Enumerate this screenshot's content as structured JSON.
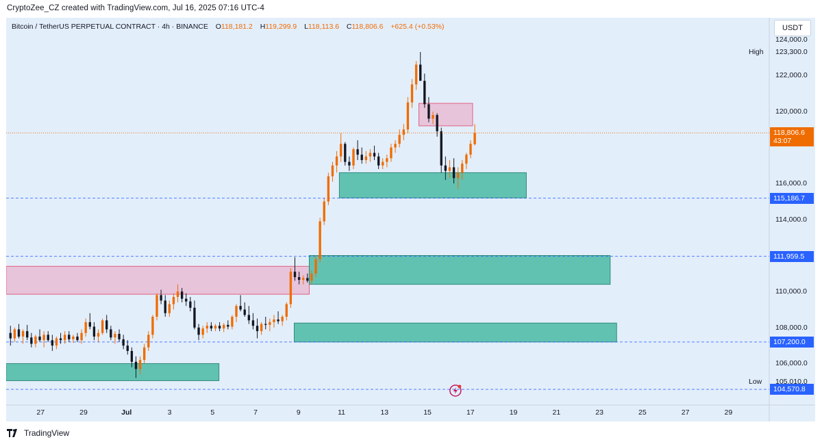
{
  "credit": "CryptoZee_CZ created with TradingView.com, Jul 16, 2025 07:16 UTC-4",
  "legend": {
    "symbol": "Bitcoin / TetherUS PERPETUAL CONTRACT · 4h · BINANCE",
    "o_label": "O",
    "o_value": "118,181.2",
    "h_label": "H",
    "h_value": "119,299.9",
    "l_label": "L",
    "l_value": "118,113.6",
    "c_label": "C",
    "c_value": "118,806.6",
    "change": "+625.4 (+0.53%)"
  },
  "currency": "USDT",
  "footer": {
    "brand": "TradingView",
    "logo_icon": "tradingview-logo-icon"
  },
  "colors": {
    "up": "#ef6c00",
    "down": "#131722",
    "demand_zone": "#5bbfae",
    "supply_zone": "#e8bcd4",
    "supply_border": "#e0607e",
    "current_price": "#ef6c00",
    "level_tag": "#2962ff",
    "background": "#e3eefb"
  },
  "chart_data": {
    "type": "candlestick",
    "timeframe": "4h",
    "ylim": [
      103700,
      125200
    ],
    "y_ticks": [
      "124,000.0",
      "122,000.0",
      "120,000.0",
      "116,000.0",
      "114,000.0",
      "110,000.0",
      "108,000.0",
      "106,000.0"
    ],
    "y_tick_values": [
      124000,
      122000,
      120000,
      116000,
      114000,
      110000,
      108000,
      106000
    ],
    "x_tick_labels": [
      "27",
      "29",
      "Jul",
      "3",
      "5",
      "7",
      "9",
      "11",
      "13",
      "15",
      "17",
      "19",
      "21",
      "23",
      "25",
      "27",
      "29"
    ],
    "x_tick_days": [
      -4,
      -2,
      0,
      2,
      4,
      6,
      8,
      10,
      12,
      14,
      16,
      18,
      20,
      22,
      24,
      26,
      28
    ],
    "x_range_days": [
      -5.6,
      29.9
    ],
    "current_price": {
      "label": "118,806.6",
      "value": 118806.6,
      "countdown": "43:07"
    },
    "high": {
      "label": "High",
      "value_label": "123,300.0",
      "value": 123300
    },
    "low": {
      "label": "Low",
      "value_label": "105,010.0",
      "value": 105010
    },
    "price_levels": [
      {
        "label": "115,186.7",
        "value": 115186.7
      },
      {
        "label": "111,959.5",
        "value": 111959.5
      },
      {
        "label": "107,200.0",
        "value": 107200
      },
      {
        "label": "104,570.8",
        "value": 104570.8
      }
    ],
    "zones": [
      {
        "kind": "supply",
        "x1": -5.6,
        "x2": 8.5,
        "y1": 109850,
        "y2": 111400
      },
      {
        "kind": "supply",
        "x1": 13.6,
        "x2": 16.1,
        "y1": 119200,
        "y2": 120450
      },
      {
        "kind": "demand",
        "x1": -5.6,
        "x2": 4.3,
        "y1": 105050,
        "y2": 106000
      },
      {
        "kind": "demand",
        "x1": 8.5,
        "x2": 22.5,
        "y1": 110400,
        "y2": 112000
      },
      {
        "kind": "demand",
        "x1": 7.8,
        "x2": 22.8,
        "y1": 107200,
        "y2": 108250
      },
      {
        "kind": "demand",
        "x1": 9.9,
        "x2": 18.6,
        "y1": 115200,
        "y2": 116600
      }
    ],
    "candles": [
      [
        107700,
        108100,
        107000,
        107400
      ],
      [
        107400,
        108000,
        107200,
        107900
      ],
      [
        107900,
        108200,
        107400,
        107500
      ],
      [
        107500,
        107900,
        107100,
        107800
      ],
      [
        107800,
        108150,
        107300,
        107450
      ],
      [
        107450,
        107700,
        106900,
        107100
      ],
      [
        107100,
        107600,
        106900,
        107500
      ],
      [
        107500,
        107900,
        107200,
        107300
      ],
      [
        107300,
        107800,
        106900,
        107600
      ],
      [
        107600,
        107800,
        107200,
        107300
      ],
      [
        107300,
        107600,
        106700,
        107000
      ],
      [
        107000,
        107500,
        106800,
        107400
      ],
      [
        107400,
        107700,
        107100,
        107300
      ],
      [
        107300,
        107800,
        107100,
        107600
      ],
      [
        107600,
        107800,
        107200,
        107350
      ],
      [
        107350,
        107600,
        107150,
        107500
      ],
      [
        107500,
        107700,
        107200,
        107300
      ],
      [
        107300,
        107900,
        107100,
        107700
      ],
      [
        107700,
        108500,
        107500,
        108300
      ],
      [
        108300,
        108800,
        107900,
        108050
      ],
      [
        108050,
        108300,
        107300,
        107500
      ],
      [
        107500,
        107900,
        107200,
        107700
      ],
      [
        107700,
        108500,
        107600,
        108400
      ],
      [
        108400,
        108700,
        107700,
        107900
      ],
      [
        107900,
        108100,
        107300,
        107450
      ],
      [
        107450,
        107800,
        107100,
        107650
      ],
      [
        107650,
        107900,
        107200,
        107350
      ],
      [
        107350,
        107600,
        106800,
        107000
      ],
      [
        107000,
        107300,
        106500,
        106700
      ],
      [
        106700,
        106900,
        105800,
        106100
      ],
      [
        106100,
        106400,
        105200,
        105700
      ],
      [
        105700,
        106400,
        105400,
        106200
      ],
      [
        106200,
        107100,
        106000,
        106900
      ],
      [
        106900,
        107800,
        106700,
        107600
      ],
      [
        107600,
        108700,
        107400,
        108600
      ],
      [
        108600,
        109900,
        108400,
        109800
      ],
      [
        109800,
        110100,
        109300,
        109500
      ],
      [
        109500,
        109800,
        108600,
        108800
      ],
      [
        108800,
        109500,
        108600,
        109300
      ],
      [
        109300,
        109900,
        109000,
        109700
      ],
      [
        109700,
        110400,
        109400,
        110000
      ],
      [
        110000,
        110200,
        109400,
        109600
      ],
      [
        109600,
        109900,
        109200,
        109450
      ],
      [
        109450,
        109700,
        108900,
        109100
      ],
      [
        109100,
        109500,
        107900,
        108000
      ],
      [
        108000,
        108200,
        107300,
        107600
      ],
      [
        107600,
        108100,
        107400,
        107950
      ],
      [
        107950,
        108300,
        107700,
        108100
      ],
      [
        108100,
        108300,
        107800,
        107950
      ],
      [
        107950,
        108200,
        107800,
        108100
      ],
      [
        108100,
        108300,
        107800,
        107950
      ],
      [
        107950,
        108250,
        107750,
        108150
      ],
      [
        108150,
        108400,
        107900,
        108050
      ],
      [
        108050,
        108700,
        107900,
        108600
      ],
      [
        108600,
        109300,
        108300,
        109200
      ],
      [
        109200,
        109800,
        108900,
        109000
      ],
      [
        109000,
        109400,
        108600,
        108700
      ],
      [
        108700,
        109200,
        108200,
        108400
      ],
      [
        108400,
        108800,
        107900,
        108100
      ],
      [
        108100,
        108500,
        107400,
        107800
      ],
      [
        107800,
        108300,
        107600,
        108200
      ],
      [
        108200,
        108600,
        107900,
        108150
      ],
      [
        108150,
        108500,
        107800,
        108300
      ],
      [
        108300,
        108700,
        108000,
        108450
      ],
      [
        108450,
        108900,
        108200,
        108350
      ],
      [
        108350,
        108700,
        108100,
        108600
      ],
      [
        108600,
        109400,
        108400,
        109300
      ],
      [
        109300,
        111300,
        109100,
        111100
      ],
      [
        111100,
        111900,
        110600,
        110800
      ],
      [
        110800,
        111100,
        110400,
        110650
      ],
      [
        110650,
        110900,
        110400,
        110750
      ],
      [
        110750,
        111000,
        110500,
        110600
      ],
      [
        110600,
        111200,
        110400,
        111000
      ],
      [
        111000,
        112000,
        110800,
        111800
      ],
      [
        111800,
        114100,
        111600,
        113900
      ],
      [
        113900,
        115200,
        113700,
        115000
      ],
      [
        115000,
        116600,
        114800,
        116400
      ],
      [
        116400,
        117200,
        116100,
        117000
      ],
      [
        117000,
        117800,
        116600,
        117500
      ],
      [
        117500,
        118800,
        117200,
        118200
      ],
      [
        118200,
        118300,
        117000,
        117200
      ],
      [
        117200,
        117500,
        116700,
        117000
      ],
      [
        117000,
        118000,
        116800,
        117900
      ],
      [
        117900,
        118400,
        117300,
        117600
      ],
      [
        117600,
        118000,
        117100,
        117300
      ],
      [
        117300,
        117800,
        117100,
        117500
      ],
      [
        117500,
        117900,
        117200,
        117700
      ],
      [
        117700,
        118100,
        117300,
        117500
      ],
      [
        117500,
        117700,
        116800,
        117000
      ],
      [
        117000,
        117400,
        116800,
        117200
      ],
      [
        117200,
        117600,
        116900,
        117400
      ],
      [
        117400,
        118200,
        117200,
        118000
      ],
      [
        118000,
        118400,
        117700,
        118200
      ],
      [
        118200,
        119000,
        118000,
        118700
      ],
      [
        118700,
        119300,
        118400,
        119000
      ],
      [
        119000,
        120800,
        118800,
        120500
      ],
      [
        120500,
        121800,
        120200,
        121500
      ],
      [
        121500,
        122800,
        121200,
        122600
      ],
      [
        122600,
        123300,
        121900,
        121700
      ],
      [
        121700,
        122100,
        120200,
        120400
      ],
      [
        120400,
        120800,
        119400,
        119600
      ],
      [
        119600,
        120000,
        119300,
        119800
      ],
      [
        119800,
        119900,
        118600,
        118900
      ],
      [
        118900,
        119100,
        116600,
        117000
      ],
      [
        117000,
        117500,
        116200,
        116700
      ],
      [
        116700,
        117300,
        116300,
        116900
      ],
      [
        116900,
        117400,
        116000,
        116300
      ],
      [
        116300,
        116900,
        115700,
        116600
      ],
      [
        116600,
        117300,
        116200,
        117100
      ],
      [
        117100,
        117700,
        116800,
        117600
      ],
      [
        117600,
        118400,
        117400,
        118200
      ],
      [
        118181.2,
        119299.9,
        118113.6,
        118806.6
      ]
    ]
  }
}
